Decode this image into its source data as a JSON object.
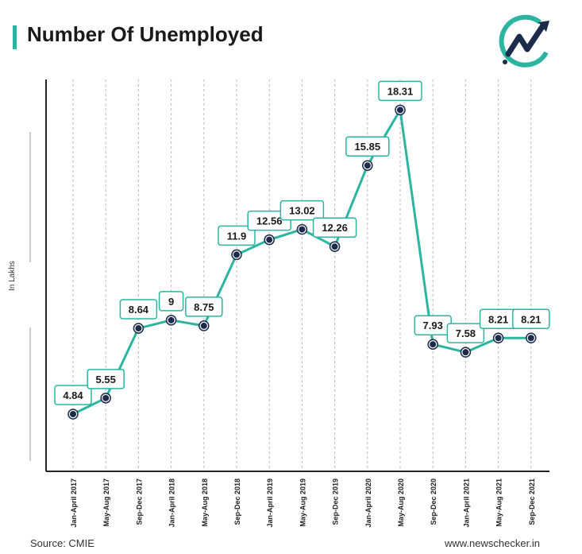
{
  "title": "Number Of Unemployed",
  "source": "Source: CMIE",
  "site": "www.newschecker.in",
  "colors": {
    "accent": "#2bb5a0",
    "marker": "#1c2b4a",
    "text": "#1a1a1a",
    "grid": "#bbbbbb"
  },
  "icons": {
    "logo": "newschecker-logo-icon"
  },
  "chart_data": {
    "type": "line",
    "title": "Number Of Unemployed",
    "xlabel": "",
    "ylabel": "In Lakhs",
    "categories": [
      "Jan-April 2017",
      "May-Aug 2017",
      "Sep-Dec 2017",
      "Jan-April 2018",
      "May-Aug 2018",
      "Sep-Dec 2018",
      "Jan-April 2019",
      "May-Aug 2019",
      "Sep-Dec 2019",
      "Jan-April 2020",
      "May-Aug 2020",
      "Sep-Dec 2020",
      "Jan-April 2021",
      "May-Aug 2021",
      "Sep-Dec 2021"
    ],
    "values": [
      4.84,
      5.55,
      8.64,
      9,
      8.75,
      11.9,
      12.56,
      13.02,
      12.26,
      15.85,
      18.31,
      7.93,
      7.58,
      8.21,
      8.21
    ],
    "labels": [
      "4.84",
      "5.55",
      "8.64",
      "9",
      "8.75",
      "11.9",
      "12.56",
      "13.02",
      "12.26",
      "15.85",
      "18.31",
      "7.93",
      "7.58",
      "8.21",
      "8.21"
    ],
    "grid": true,
    "legend": "none"
  }
}
